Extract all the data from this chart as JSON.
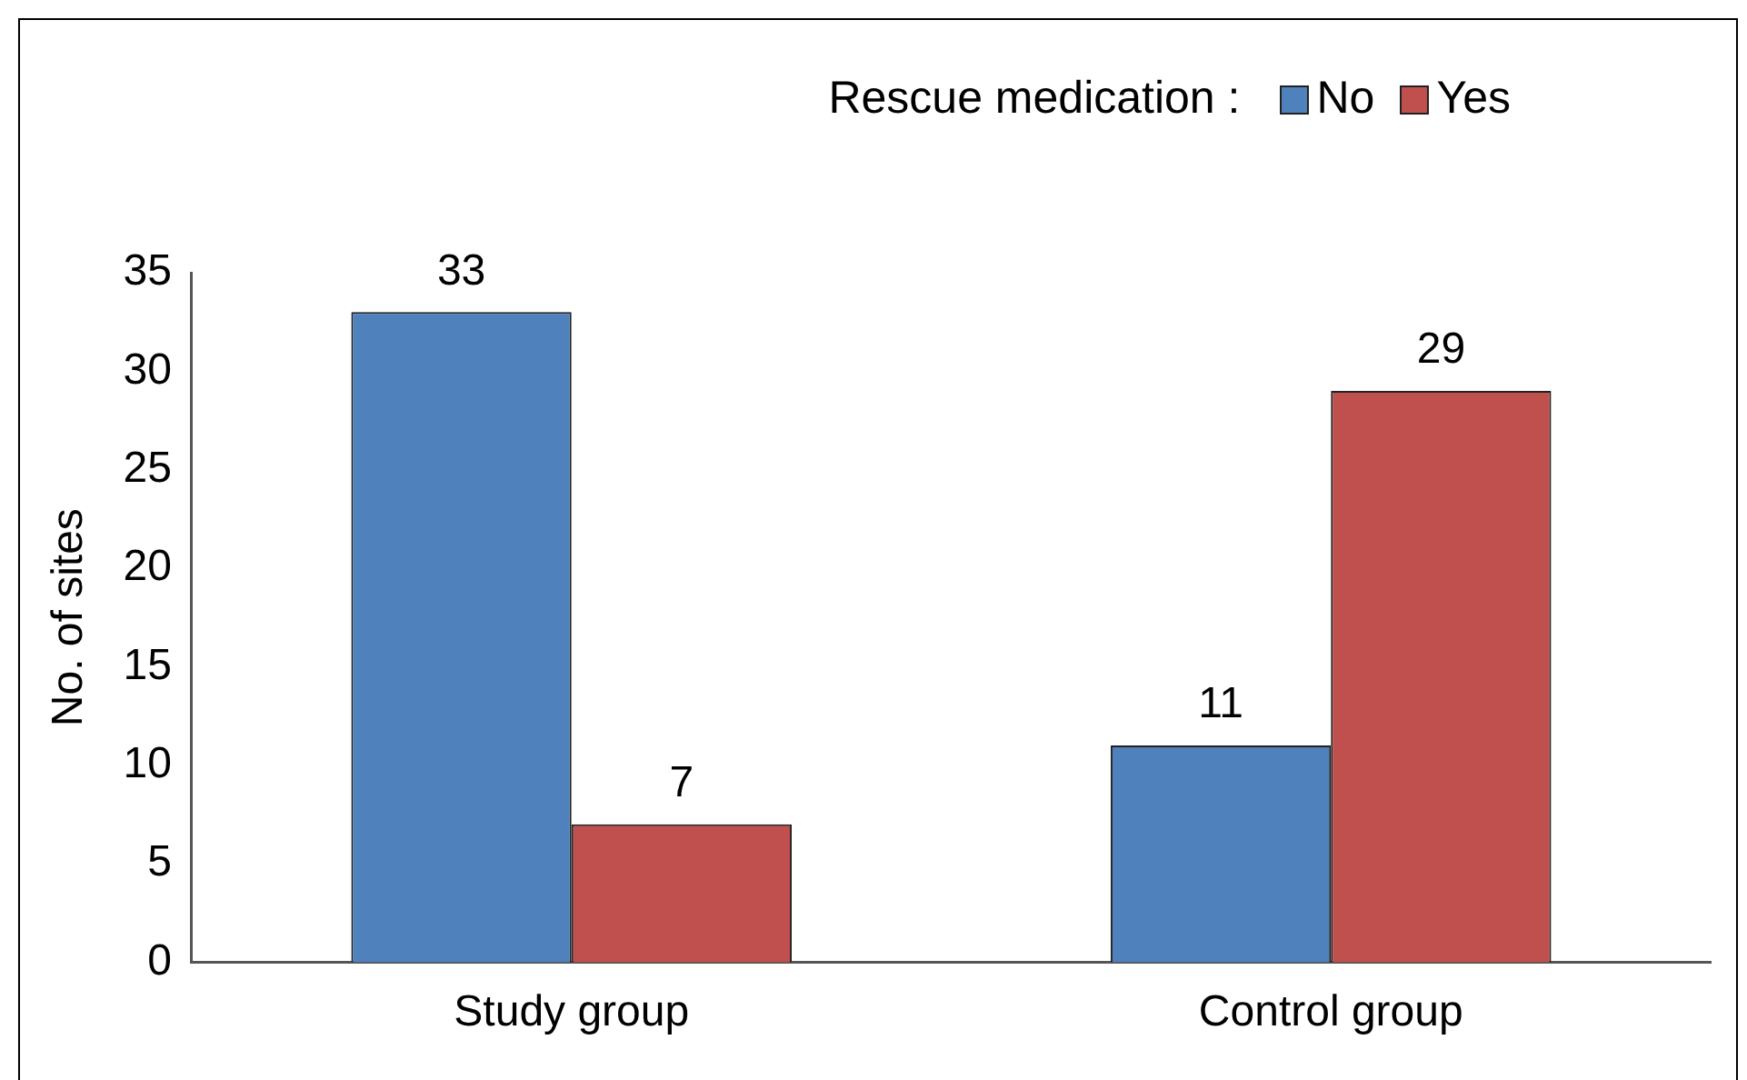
{
  "chart_data": {
    "type": "bar",
    "ylabel": "No. of sites",
    "legend_title": "Rescue medication :",
    "legend": "top right",
    "categories": [
      "Study group",
      "Control group"
    ],
    "series": [
      {
        "name": "No",
        "color": "#4f81bd",
        "values": [
          33,
          11
        ]
      },
      {
        "name": "Yes",
        "color": "#c0504d",
        "values": [
          7,
          29
        ]
      }
    ],
    "ylim": [
      0,
      35
    ],
    "yticks": [
      0,
      5,
      10,
      15,
      20,
      25,
      30,
      35
    ],
    "grid": false,
    "data_labels": true
  }
}
